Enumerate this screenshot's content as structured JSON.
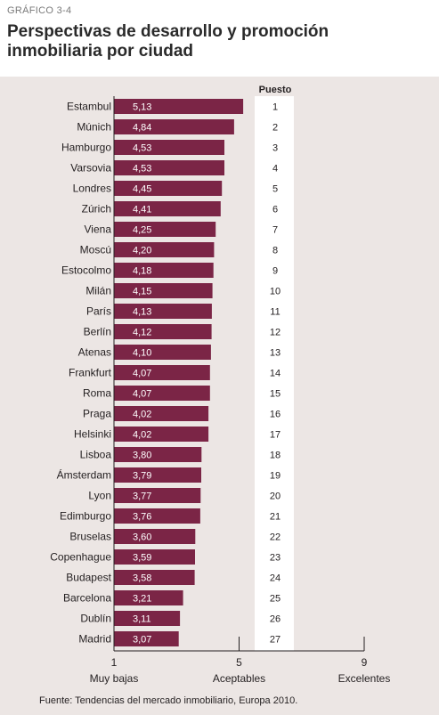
{
  "header": {
    "kicker": "GRÁFICO 3-4",
    "title": "Perspectivas de desarrollo y promoción inmobiliaria por ciudad"
  },
  "rank_header": "Puesto",
  "source": "Fuente: Tendencias del mercado inmobiliario, Europa 2010.",
  "colors": {
    "bar": "#7b2546",
    "panel": "#ece6e4",
    "rank_column": "#ffffff"
  },
  "chart_data": {
    "type": "bar",
    "orientation": "horizontal",
    "title": "Perspectivas de desarrollo y promoción inmobiliaria por ciudad",
    "xlim": [
      1,
      9
    ],
    "x_ticks": [
      {
        "value": 1,
        "label": "Muy bajas"
      },
      {
        "value": 5,
        "label": "Aceptables"
      },
      {
        "value": 9,
        "label": "Excelentes"
      }
    ],
    "categories": [
      "Estambul",
      "Múnich",
      "Hamburgo",
      "Varsovia",
      "Londres",
      "Zúrich",
      "Viena",
      "Moscú",
      "Estocolmo",
      "Milán",
      "París",
      "Berlín",
      "Atenas",
      "Frankfurt",
      "Roma",
      "Praga",
      "Helsinki",
      "Lisboa",
      "Ámsterdam",
      "Lyon",
      "Edimburgo",
      "Bruselas",
      "Copenhague",
      "Budapest",
      "Barcelona",
      "Dublín",
      "Madrid"
    ],
    "values": [
      5.13,
      4.84,
      4.53,
      4.53,
      4.45,
      4.41,
      4.25,
      4.2,
      4.18,
      4.15,
      4.13,
      4.12,
      4.1,
      4.07,
      4.07,
      4.02,
      4.02,
      3.8,
      3.79,
      3.77,
      3.76,
      3.6,
      3.59,
      3.58,
      3.21,
      3.11,
      3.07
    ],
    "value_labels": [
      "5,13",
      "4,84",
      "4,53",
      "4,53",
      "4,45",
      "4,41",
      "4,25",
      "4,20",
      "4,18",
      "4,15",
      "4,13",
      "4,12",
      "4,10",
      "4,07",
      "4,07",
      "4,02",
      "4,02",
      "3,80",
      "3,79",
      "3,77",
      "3,76",
      "3,60",
      "3,59",
      "3,58",
      "3,21",
      "3,11",
      "3,07"
    ],
    "ranks": [
      1,
      2,
      3,
      4,
      5,
      6,
      7,
      8,
      9,
      10,
      11,
      12,
      13,
      14,
      15,
      16,
      17,
      18,
      19,
      20,
      21,
      22,
      23,
      24,
      25,
      26,
      27
    ]
  }
}
